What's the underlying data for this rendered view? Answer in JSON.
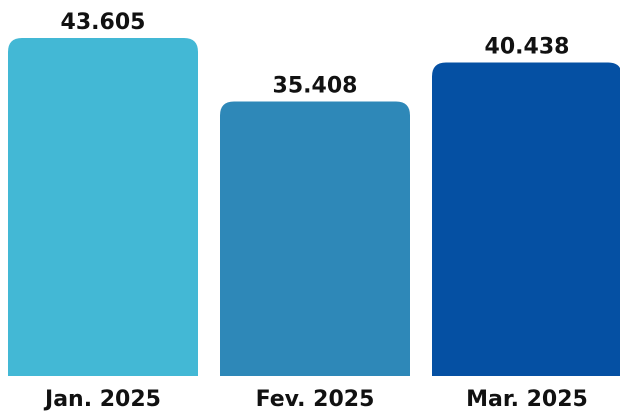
{
  "chart_data": {
    "type": "bar",
    "title": "",
    "xlabel": "",
    "ylabel": "",
    "categories": [
      "Jan. 2025",
      "Fev. 2025",
      "Mar. 2025"
    ],
    "values": [
      43605,
      35408,
      40438
    ],
    "value_labels": [
      "43.605",
      "35.408",
      "40.438"
    ],
    "colors": [
      "#43B8D5",
      "#2E88B8",
      "#0550A3"
    ],
    "grid": false,
    "legend": "none"
  }
}
